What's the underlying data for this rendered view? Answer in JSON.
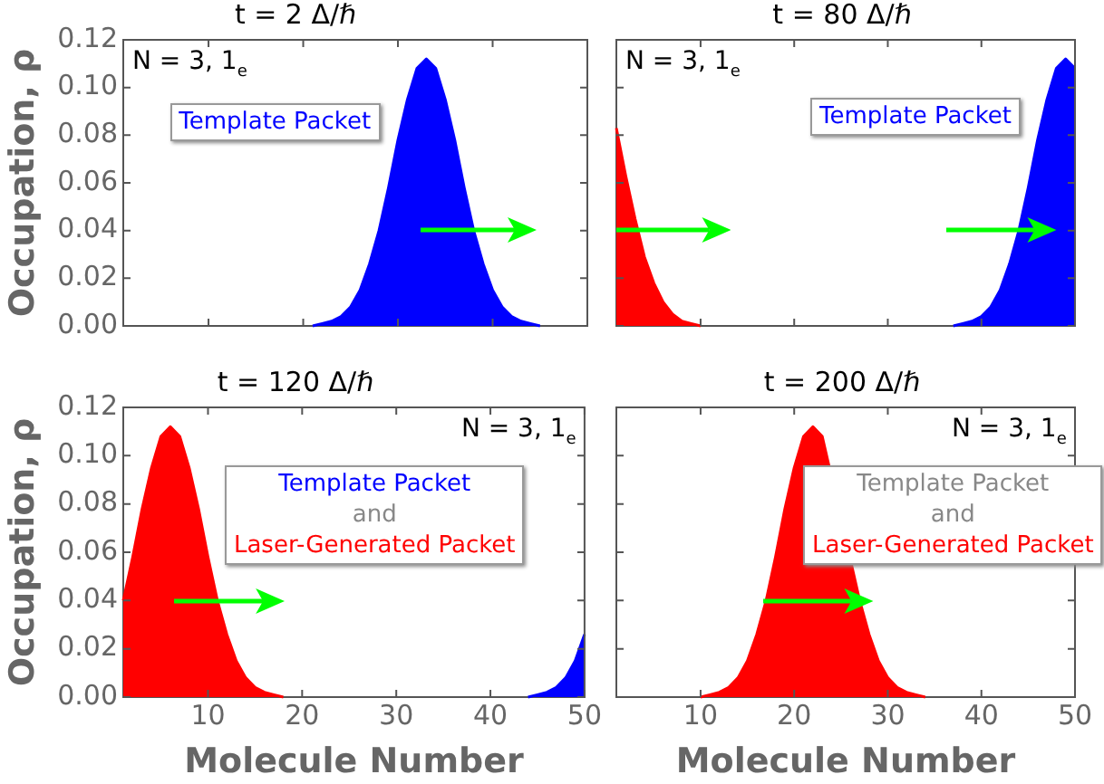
{
  "chart_data": [
    {
      "type": "area",
      "title": "t = 2 Δ/ℏ",
      "ylabel": "Occupation, ρ",
      "xlim": [
        1,
        50
      ],
      "xticks": [
        {
          "value": 10,
          "label": null
        },
        {
          "value": 20,
          "label": null
        },
        {
          "value": 30,
          "label": null
        },
        {
          "value": 40,
          "label": null
        },
        {
          "value": 50,
          "label": null
        }
      ],
      "ylim": [
        0,
        0.12
      ],
      "yticks": [
        {
          "value": 0,
          "label": "0.00"
        },
        0.02,
        0.04,
        0.06,
        0.08,
        {
          "value": 0.1,
          "label": "0.10"
        },
        0.12
      ],
      "tick_labels": "y",
      "legend": "top left",
      "annotations": [
        "N = 3, 1$_{e}$"
      ],
      "series": [
        {
          "name": "Template Packet",
          "color": "#0000ff",
          "x": [
            21,
            22,
            23,
            24,
            25,
            26,
            27,
            28,
            29,
            30,
            31,
            32,
            33,
            34,
            35,
            36,
            37,
            38,
            39,
            40,
            41,
            42,
            43,
            44,
            45
          ],
          "values": [
            0,
            0.001,
            0.002,
            0.004,
            0.008,
            0.015,
            0.026,
            0.04,
            0.058,
            0.078,
            0.095,
            0.108,
            0.112,
            0.108,
            0.095,
            0.078,
            0.058,
            0.04,
            0.026,
            0.015,
            0.008,
            0.004,
            0.002,
            0.001,
            0
          ]
        }
      ]
    },
    {
      "type": "area",
      "title": "t = 80 Δ/ℏ",
      "xlim": [
        1,
        50
      ],
      "xticks": [
        {
          "value": 10,
          "label": null
        },
        {
          "value": 20,
          "label": null
        },
        {
          "value": 30,
          "label": null
        },
        {
          "value": 40,
          "label": null
        },
        {
          "value": 50,
          "label": null
        }
      ],
      "ylim": [
        0,
        0.12
      ],
      "yticks": [
        {
          "value": 0,
          "label": null
        },
        {
          "value": 0.02,
          "label": null
        },
        {
          "value": 0.04,
          "label": null
        },
        {
          "value": 0.06,
          "label": null
        },
        {
          "value": 0.08,
          "label": null
        },
        {
          "value": 0.1,
          "label": null
        },
        {
          "value": 0.12,
          "label": null
        }
      ],
      "tick_labels": false,
      "legend": "top right",
      "annotations": [
        "N = 3, 1$_{e}$"
      ],
      "series": [
        {
          "name": "Template Packet",
          "color": "#0000ff",
          "x": [
            37,
            38,
            39,
            40,
            41,
            42,
            43,
            44,
            45,
            46,
            47,
            48,
            49,
            50
          ],
          "values": [
            0,
            0.001,
            0.002,
            0.004,
            0.008,
            0.015,
            0.026,
            0.04,
            0.058,
            0.078,
            0.095,
            0.108,
            0.112,
            0.108
          ]
        },
        {
          "color": "#ff0000",
          "x": [
            1,
            2,
            3,
            4,
            5,
            6,
            7,
            8,
            9,
            10
          ],
          "values": [
            0.083,
            0.063,
            0.045,
            0.029,
            0.018,
            0.01,
            0.005,
            0.002,
            0.001,
            0
          ]
        }
      ]
    },
    {
      "type": "area",
      "title": "t = 120 Δ/ℏ",
      "xlabel": "Molecule Number",
      "ylabel": "Occupation, ρ",
      "xlim": [
        1,
        50
      ],
      "xticks": [
        10,
        20,
        30,
        40,
        50
      ],
      "ylim": [
        0,
        0.12
      ],
      "yticks": [
        {
          "value": 0,
          "label": "0.00"
        },
        0.02,
        0.04,
        0.06,
        0.08,
        {
          "value": 0.1,
          "label": "0.10"
        },
        0.12
      ],
      "legend": "top left",
      "annotations": [
        "N = 3, 1$_{e}$",
        "and"
      ],
      "series": [
        {
          "name": "Template Packet",
          "color": "#0000ff",
          "x": [
            44,
            45,
            46,
            47,
            48,
            49,
            50
          ],
          "values": [
            0,
            0.001,
            0.002,
            0.004,
            0.008,
            0.015,
            0.026
          ]
        },
        {
          "name": "Laser-Generated Packet",
          "color": "#ff0000",
          "x": [
            1,
            2,
            3,
            4,
            5,
            6,
            7,
            8,
            9,
            10,
            11,
            12,
            13,
            14,
            15,
            16,
            17,
            18
          ],
          "values": [
            0.04,
            0.058,
            0.078,
            0.095,
            0.108,
            0.112,
            0.108,
            0.095,
            0.078,
            0.058,
            0.04,
            0.026,
            0.015,
            0.008,
            0.004,
            0.002,
            0.001,
            0
          ]
        }
      ]
    },
    {
      "type": "area",
      "title": "t = 200 Δ/ℏ",
      "xlabel": "Molecule Number",
      "xlim": [
        1,
        50
      ],
      "xticks": [
        10,
        20,
        30,
        40,
        50
      ],
      "ylim": [
        0,
        0.12
      ],
      "yticks": [
        {
          "value": 0,
          "label": null
        },
        {
          "value": 0.02,
          "label": null
        },
        {
          "value": 0.04,
          "label": null
        },
        {
          "value": 0.06,
          "label": null
        },
        {
          "value": 0.08,
          "label": null
        },
        {
          "value": 0.1,
          "label": null
        },
        {
          "value": 0.12,
          "label": null
        }
      ],
      "tick_labels": "x",
      "legend": "right",
      "annotations": [
        "N = 3, 1$_{e}$",
        "Template Packet",
        "and"
      ],
      "series": [
        {
          "name": "Laser-Generated Packet",
          "color": "#ff0000",
          "x": [
            10,
            11,
            12,
            13,
            14,
            15,
            16,
            17,
            18,
            19,
            20,
            21,
            22,
            23,
            24,
            25,
            26,
            27,
            28,
            29,
            30,
            31,
            32,
            33,
            34
          ],
          "values": [
            0,
            0.001,
            0.002,
            0.004,
            0.008,
            0.015,
            0.026,
            0.04,
            0.058,
            0.078,
            0.095,
            0.108,
            0.112,
            0.108,
            null,
            null,
            null,
            0.04,
            0.026,
            0.015,
            0.008,
            0.004,
            0.002,
            0.001,
            0
          ]
        }
      ]
    }
  ]
}
